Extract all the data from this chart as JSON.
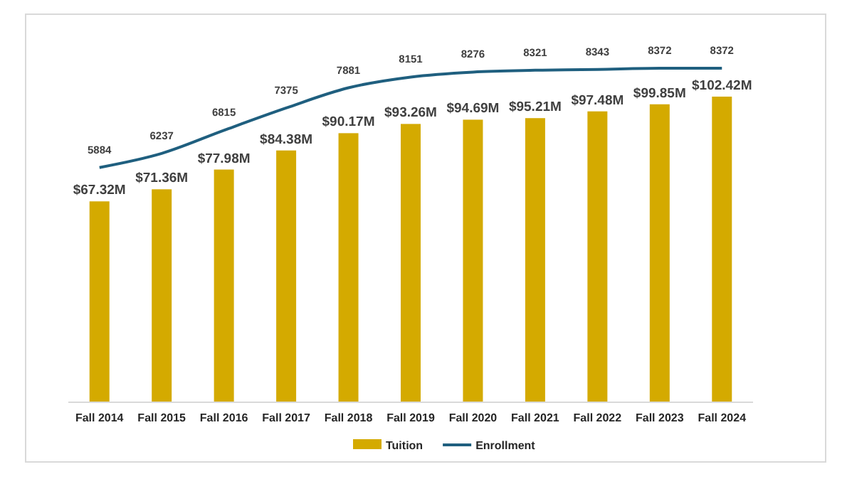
{
  "chart_data": {
    "type": "bar",
    "relative": false,
    "categories": [
      "Fall 2014",
      "Fall 2015",
      "Fall 2016",
      "Fall 2017",
      "Fall 2018",
      "Fall 2019",
      "Fall 2020",
      "Fall 2021",
      "Fall 2022",
      "Fall 2023",
      "Fall 2024"
    ],
    "series": [
      {
        "name": "Tuition",
        "color": "#d4aa00",
        "values": [
          67.32,
          71.36,
          77.98,
          84.38,
          90.17,
          93.26,
          94.69,
          95.21,
          97.48,
          99.85,
          102.42
        ],
        "value_labels": [
          "$67.32M",
          "$71.36M",
          "$77.98M",
          "$84.38M",
          "$90.17M",
          "$93.26M",
          "$94.69M",
          "$95.21M",
          "$97.48M",
          "$99.85M",
          "$102.42M"
        ]
      },
      {
        "name": "Enrollment",
        "type": "line",
        "axis": "y2",
        "color": "#1f5f7f",
        "values": [
          5884,
          6237,
          6815,
          7375,
          7881,
          8151,
          8276,
          8321,
          8343,
          8372,
          8372
        ],
        "value_labels": [
          "5884",
          "6237",
          "6815",
          "7375",
          "7881",
          "8151",
          "8276",
          "8321",
          "8343",
          "8372",
          "8372"
        ]
      }
    ],
    "legend": "bottom",
    "marker": "none"
  }
}
